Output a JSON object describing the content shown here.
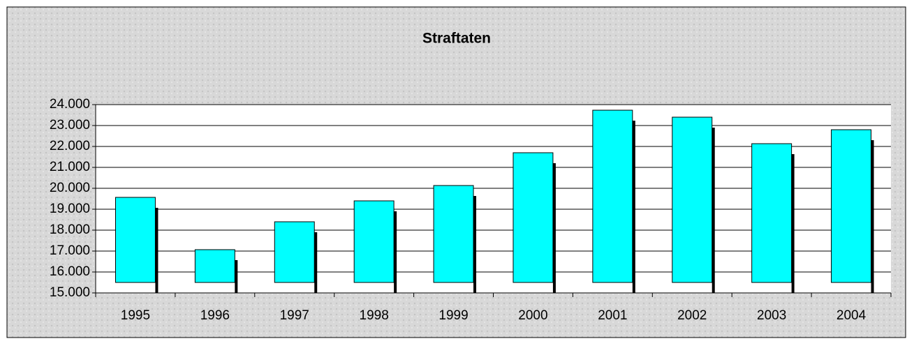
{
  "chart_data": {
    "type": "bar",
    "title": "Straftaten",
    "categories": [
      "1995",
      "1996",
      "1997",
      "1998",
      "1999",
      "2000",
      "2001",
      "2002",
      "2003",
      "2004"
    ],
    "values": [
      19567,
      17067,
      18400,
      19400,
      20133,
      21700,
      23733,
      23400,
      22133,
      22800
    ],
    "color": "#00ffff",
    "ylim": [
      15000,
      24000
    ],
    "yticks": [
      {
        "value": 15000,
        "label": "15.000"
      },
      {
        "value": 16000,
        "label": "16.000"
      },
      {
        "value": 17000,
        "label": "17.000"
      },
      {
        "value": 18000,
        "label": "18.000"
      },
      {
        "value": 19000,
        "label": "19.000"
      },
      {
        "value": 20000,
        "label": "20.000"
      },
      {
        "value": 21000,
        "label": "21.000"
      },
      {
        "value": 22000,
        "label": "22.000"
      },
      {
        "value": 23000,
        "label": "23.000"
      },
      {
        "value": 24000,
        "label": "24.000"
      }
    ],
    "grid": true
  }
}
